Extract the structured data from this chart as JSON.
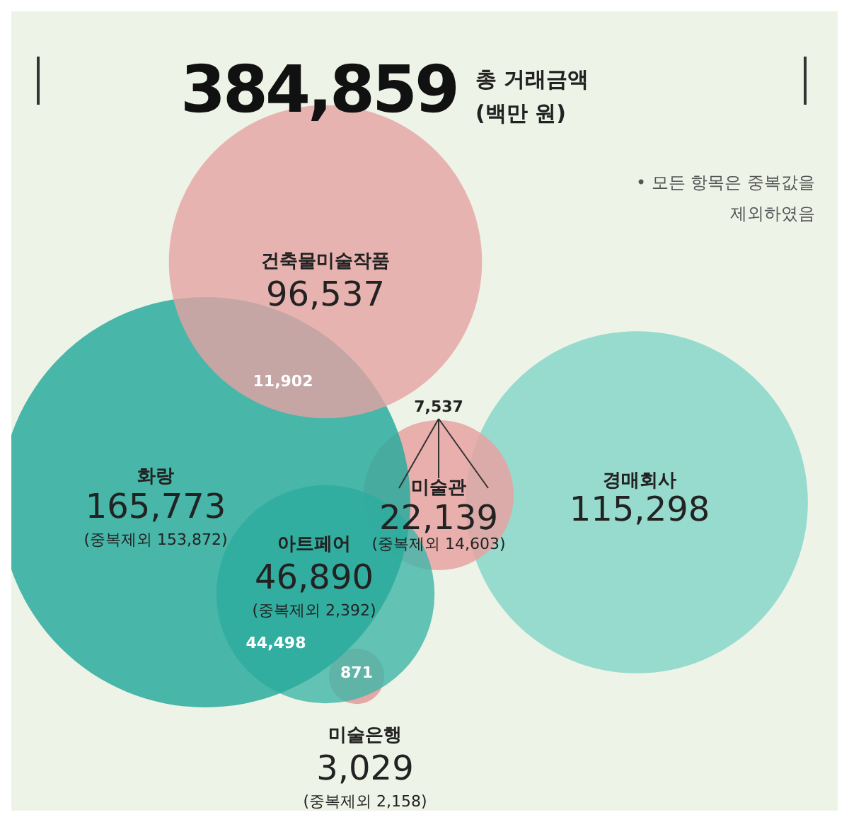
{
  "chart_data": {
    "type": "other",
    "title": "384,859",
    "subtitle": "총 거래금액 (백만 원)",
    "categories": [
      "건축물미술작품",
      "화랑",
      "아트페어",
      "미술관",
      "경매회사",
      "미술은행"
    ],
    "values": [
      96537,
      165773,
      46890,
      22139,
      115298,
      3029
    ],
    "value_labels": [
      "96,537",
      "165,773",
      "46,890",
      "22,139",
      "115,298",
      "3,029"
    ],
    "colors": [
      "#e5a3a3",
      "#2aaa9c",
      "#3fb5a8",
      "#e8a2a2",
      "#86d6c8",
      "#e39a9a"
    ],
    "annotations": [
      "• 모든 항목은 중복값을 제외하였음",
      "11,902",
      "7,537",
      "44,498",
      "871",
      {
        "text": "(중복제외 153,872)",
        "x": "화랑"
      },
      {
        "text": "(중복제외 2,392)",
        "x": "아트페어"
      },
      {
        "text": "(중복제외 14,603)",
        "x": "미술관"
      },
      {
        "text": "(중복제외 2,158)",
        "x": "미술은행"
      }
    ]
  }
}
